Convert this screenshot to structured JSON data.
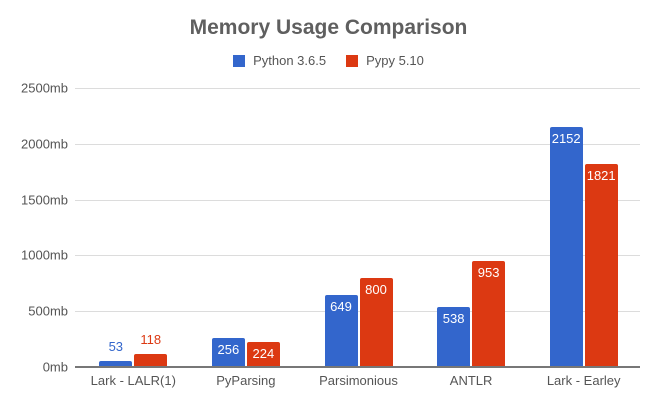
{
  "chart_data": {
    "type": "bar",
    "title": "Memory Usage Comparison",
    "xlabel": "",
    "ylabel": "",
    "categories": [
      "Lark - LALR(1)",
      "PyParsing",
      "Parsimonious",
      "ANTLR",
      "Lark - Earley"
    ],
    "series": [
      {
        "name": "Python 3.6.5",
        "color": "#3366cc",
        "values": [
          53,
          256,
          649,
          538,
          2152
        ]
      },
      {
        "name": "Pypy 5.10",
        "color": "#dc3912",
        "values": [
          118,
          224,
          800,
          953,
          1821
        ]
      }
    ],
    "ylim": [
      0,
      2500
    ],
    "yticks": [
      "0mb",
      "500mb",
      "1000mb",
      "1500mb",
      "2000mb",
      "2500mb"
    ],
    "ytick_values": [
      0,
      500,
      1000,
      1500,
      2000,
      2500
    ],
    "grid": true,
    "legend_position": "top"
  },
  "legend": {
    "items": [
      "Python 3.6.5",
      "Pypy 5.10"
    ]
  }
}
